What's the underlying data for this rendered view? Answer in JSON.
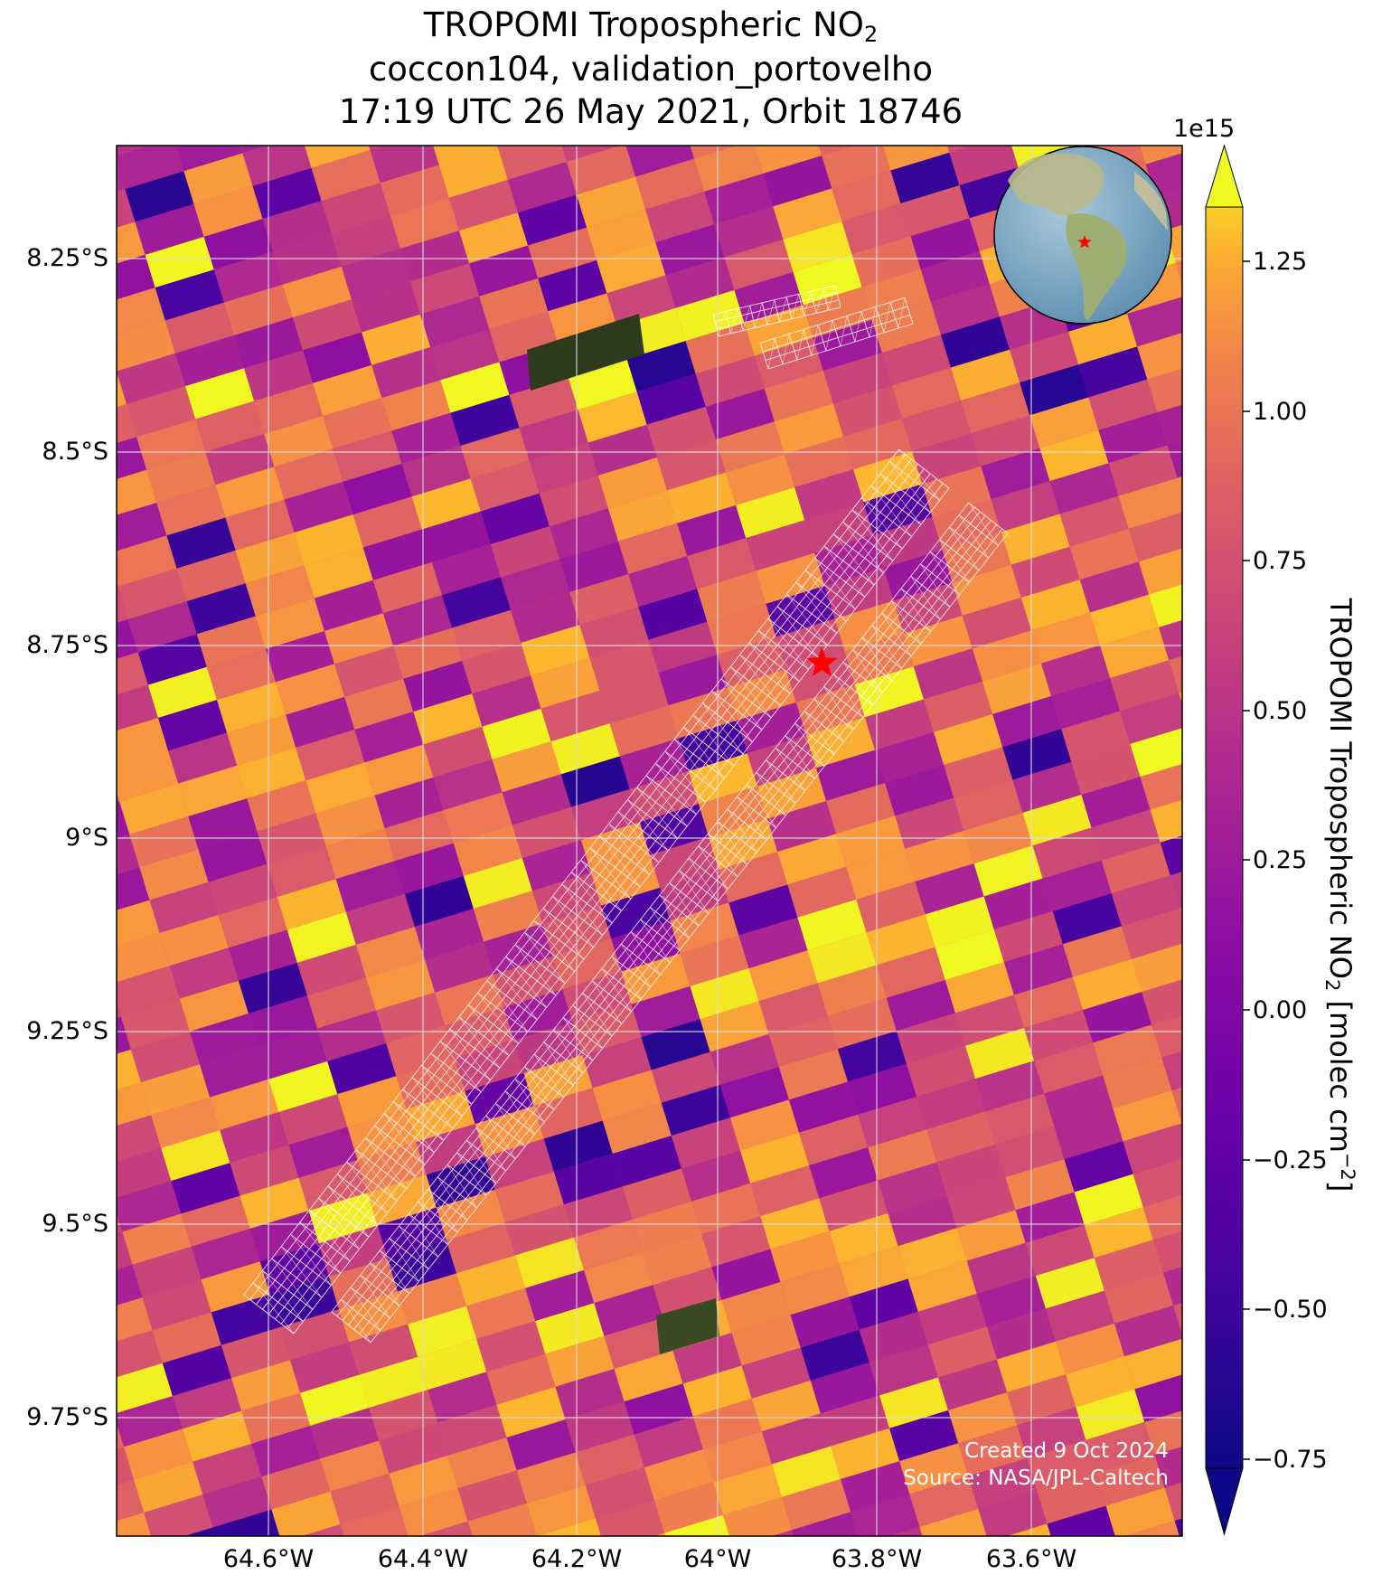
{
  "title": {
    "line1_prefix": "TROPOMI Tropospheric NO",
    "line1_sub": "2",
    "line2": "coccon104, validation_portovelho",
    "line3": "17:19 UTC 26 May 2021, Orbit 18746"
  },
  "map": {
    "lat_ticks": [
      "8.25°S",
      "8.5°S",
      "8.75°S",
      "9°S",
      "9.25°S",
      "9.5°S",
      "9.75°S"
    ],
    "lon_ticks": [
      "64.6°W",
      "64.4°W",
      "64.2°W",
      "64°W",
      "63.8°W",
      "63.6°W"
    ],
    "lat_range": [
      -9.91,
      -8.11
    ],
    "lon_range": [
      -64.79,
      -63.4
    ],
    "grid": true,
    "site_marker": {
      "lon": -63.87,
      "lat": -8.78,
      "symbol": "star",
      "color": "#ff0000"
    },
    "inset_globe": {
      "position": "top-right",
      "marker": "star"
    }
  },
  "colorbar": {
    "label_prefix": "TROPOMI Tropospheric NO",
    "label_sub": "2",
    "label_mid": " [molec cm",
    "label_sup": "−2",
    "label_suffix": "]",
    "exponent": "1e15",
    "ticks": [
      "1.25",
      "1.00",
      "0.75",
      "0.50",
      "0.25",
      "0.00",
      "−0.25",
      "−0.50",
      "−0.75"
    ],
    "range": [
      -0.75,
      1.35
    ],
    "extend": "both",
    "colormap": "plasma"
  },
  "credits": {
    "created": "Created 9 Oct 2024",
    "source": "Source: NASA/JPL-Caltech"
  }
}
